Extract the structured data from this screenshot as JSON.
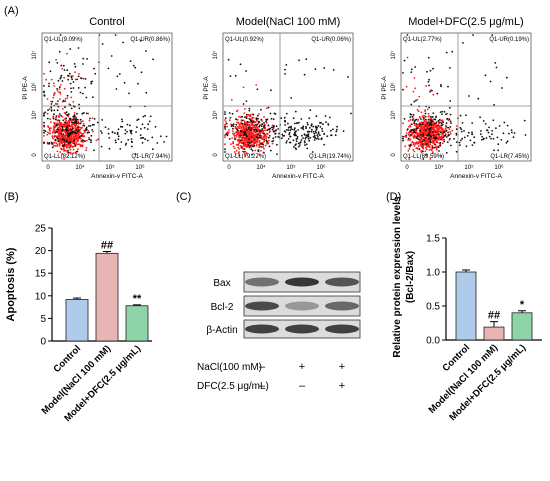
{
  "panels": {
    "a": "(A)",
    "b": "(B)",
    "c": "(C)",
    "d": "(D)"
  },
  "colors": {
    "control": "#aecbeb",
    "model": "#e8b4b4",
    "dfc": "#8fd3a8",
    "red_dots": "#ff1a1a",
    "black_dots": "#111111",
    "gate": "#888888"
  },
  "chart_data": [
    {
      "type": "scatter",
      "panel": "A",
      "title": "Control",
      "xlabel": "Annexin-v FITC-A",
      "ylabel": "PI PE-A",
      "xticks": [
        "0",
        "10⁴",
        "10⁵",
        "10⁶"
      ],
      "yticks": [
        "0",
        "10⁵",
        "10⁶",
        "10⁷"
      ],
      "quadrants": [
        {
          "name": "Q1-UL",
          "label": "Q1-UL(9.09%)",
          "value": 9.09
        },
        {
          "name": "Q1-UR",
          "label": "Q1-UR(0.86%)",
          "value": 0.86
        },
        {
          "name": "Q1-LL",
          "label": "Q1-LL(82.12%)",
          "value": 82.12
        },
        {
          "name": "Q1-LR",
          "label": "Q1-LR(7.94%)",
          "value": 7.94
        }
      ]
    },
    {
      "type": "scatter",
      "panel": "A",
      "title": "Model(NaCl 100 mM)",
      "xlabel": "Annexin-v FITC-A",
      "ylabel": "PI PE-A",
      "xticks": [
        "0",
        "10⁴",
        "10⁵",
        "10⁶"
      ],
      "yticks": [
        "0",
        "10⁵",
        "10⁶",
        "10⁷"
      ],
      "quadrants": [
        {
          "name": "Q1-UL",
          "label": "Q1-UL(0.92%)",
          "value": 0.92
        },
        {
          "name": "Q1-UR",
          "label": "Q1-UR(0.06%)",
          "value": 0.06
        },
        {
          "name": "Q1-LL",
          "label": "Q1-LL(79.27%)",
          "value": 79.27
        },
        {
          "name": "Q1-LR",
          "label": "Q1-LR(19.74%)",
          "value": 19.74
        }
      ]
    },
    {
      "type": "scatter",
      "panel": "A",
      "title": "Model+DFC(2.5 μg/mL)",
      "xlabel": "Annexin-v FITC-A",
      "ylabel": "PI PE-A",
      "xticks": [
        "0",
        "10⁴",
        "10⁵",
        "10⁶"
      ],
      "yticks": [
        "0",
        "10⁵",
        "10⁶",
        "10⁷"
      ],
      "quadrants": [
        {
          "name": "Q1-UL",
          "label": "Q1-UL(2.77%)",
          "value": 2.77
        },
        {
          "name": "Q1-UR",
          "label": "Q1-UR(0.19%)",
          "value": 0.19
        },
        {
          "name": "Q1-LL",
          "label": "Q1-LL(89.59%)",
          "value": 89.59
        },
        {
          "name": "Q1-LR",
          "label": "Q1-LR(7.45%)",
          "value": 7.45
        }
      ]
    },
    {
      "type": "bar",
      "panel": "B",
      "ylabel": "Apoptosis (%)",
      "categories": [
        "Control",
        "Model(NaCl 100 mM)",
        "Model+DFC(2.5 μg/mL)"
      ],
      "values": [
        9.2,
        19.4,
        7.8
      ],
      "errors": [
        0.3,
        0.4,
        0.2
      ],
      "significance": [
        "",
        "##",
        "**"
      ],
      "ylim": [
        0,
        25
      ],
      "yticks": [
        0,
        5,
        10,
        15,
        20,
        25
      ],
      "ytick_labels": [
        "0",
        "5",
        "10",
        "15",
        "20",
        "25"
      ]
    },
    {
      "type": "table",
      "panel": "C",
      "bands": [
        "Bax",
        "Bcl-2",
        "β-Actin"
      ],
      "conditions": [
        {
          "label": "NaCl(100 mM)",
          "marks": [
            "–",
            "+",
            "+"
          ]
        },
        {
          "label": "DFC(2.5 μg/mL)",
          "marks": [
            "–",
            "–",
            "+"
          ]
        }
      ]
    },
    {
      "type": "bar",
      "panel": "D",
      "ylabel": "Relative protein expression levels (Bcl-2/Bax)",
      "categories": [
        "Control",
        "Model(NaCl 100 mM)",
        "Model+DFC(2.5 μg/mL)"
      ],
      "values": [
        1.0,
        0.19,
        0.4
      ],
      "errors": [
        0.03,
        0.08,
        0.03
      ],
      "significance": [
        "",
        "##",
        "*"
      ],
      "ylim": [
        0,
        1.5
      ],
      "yticks": [
        0,
        0.5,
        1.0,
        1.5
      ],
      "ytick_labels": [
        "0.0",
        "0.5",
        "1.0",
        "1.5"
      ]
    }
  ]
}
